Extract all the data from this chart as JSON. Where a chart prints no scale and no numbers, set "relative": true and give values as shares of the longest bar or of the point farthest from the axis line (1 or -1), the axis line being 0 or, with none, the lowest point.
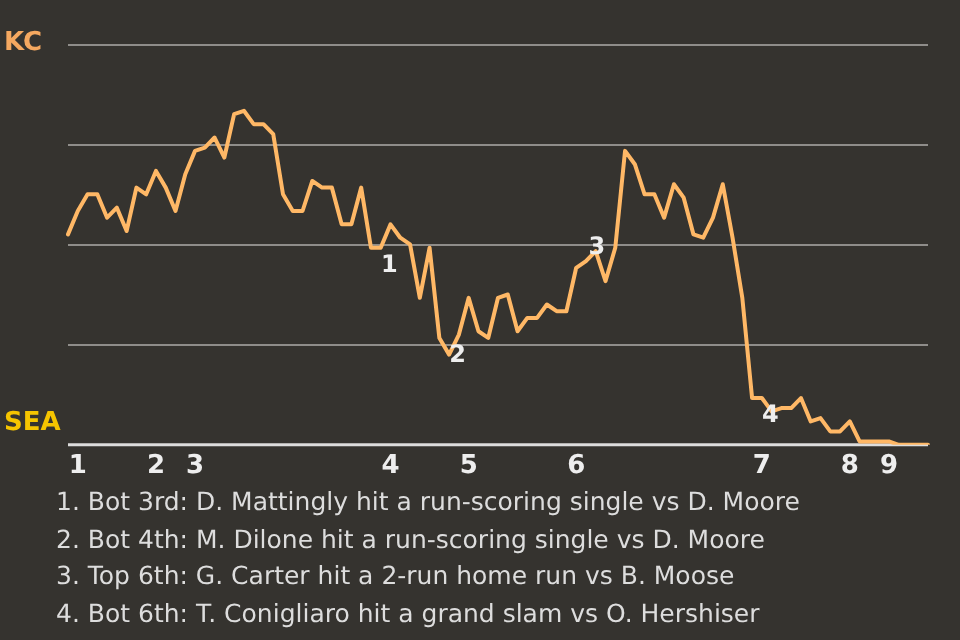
{
  "chart_data": {
    "type": "line",
    "categories": [
      null,
      "1",
      null,
      null,
      null,
      null,
      null,
      null,
      null,
      "2",
      null,
      null,
      null,
      "3",
      null,
      null,
      null,
      null,
      null,
      null,
      null,
      null,
      null,
      null,
      null,
      null,
      null,
      null,
      null,
      null,
      null,
      null,
      null,
      "4",
      null,
      null,
      null,
      null,
      null,
      null,
      null,
      "5",
      null,
      null,
      null,
      null,
      null,
      null,
      null,
      null,
      null,
      null,
      "6",
      null,
      null,
      null,
      null,
      null,
      null,
      null,
      null,
      null,
      null,
      null,
      null,
      null,
      null,
      null,
      null,
      null,
      null,
      "7",
      null,
      null,
      null,
      null,
      null,
      null,
      null,
      null,
      "8",
      null,
      null,
      null,
      "9",
      null,
      null,
      null,
      null
    ],
    "relative": true,
    "series": [
      {
        "color": "#ffb866",
        "values": [
          0.63,
          0.7,
          0.75,
          0.75,
          0.68,
          0.71,
          0.64,
          0.77,
          0.75,
          0.82,
          0.77,
          0.7,
          0.81,
          0.88,
          0.89,
          0.92,
          0.86,
          0.99,
          1,
          0.96,
          0.96,
          0.93,
          0.75,
          0.7,
          0.7,
          0.79,
          0.77,
          0.77,
          0.66,
          0.66,
          0.77,
          0.59,
          0.59,
          0.66,
          0.62,
          0.6,
          0.44,
          0.59,
          0.32,
          0.27,
          0.33,
          0.44,
          0.34,
          0.32,
          0.44,
          0.45,
          0.34,
          0.38,
          0.38,
          0.42,
          0.4,
          0.4,
          0.53,
          0.55,
          0.58,
          0.49,
          0.59,
          0.88,
          0.84,
          0.75,
          0.75,
          0.68,
          0.78,
          0.74,
          0.63,
          0.62,
          0.68,
          0.78,
          0.62,
          0.44,
          0.14,
          0.14,
          0.1,
          0.11,
          0.11,
          0.14,
          0.07,
          0.08,
          0.04,
          0.04,
          0.07,
          0.01,
          0.01,
          0.01,
          0.01,
          0,
          0,
          0,
          0
        ],
        "name": null
      }
    ],
    "grid": "y",
    "marker": "none",
    "line_style": "solid",
    "annotations": [
      "KC",
      "SEA",
      {
        "text": "1",
        "y": 0.59
      },
      {
        "text": "2",
        "y": 0.32
      },
      {
        "text": "3",
        "y": 0.59
      },
      {
        "text": "4",
        "y": 0.14
      },
      "1. Bot 3rd: D. Mattingly hit a run-scoring single vs D. Moore",
      "2. Bot 4th: M. Dilone hit a run-scoring single vs D. Moore",
      "3. Top 6th: G. Carter hit a 2-run home run vs B. Moose",
      "4. Bot 6th: T. Conigliaro hit a grand slam vs O. Hershiser"
    ]
  }
}
